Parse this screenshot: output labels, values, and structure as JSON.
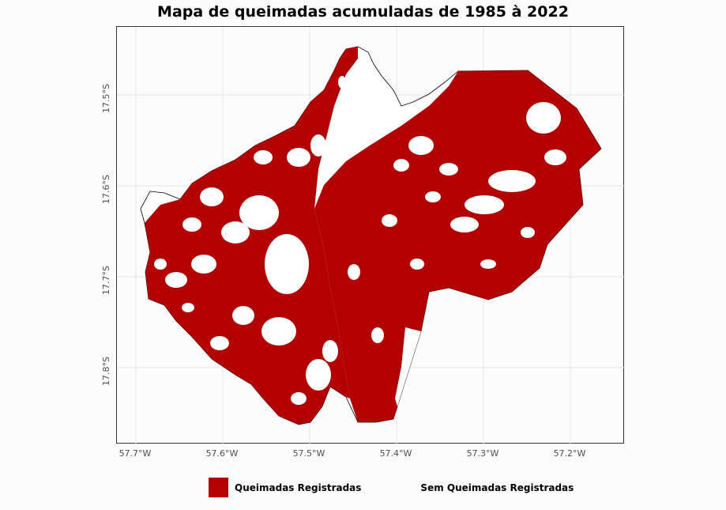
{
  "title": "Mapa de queimadas acumuladas de 1985 à 2022",
  "axes": {
    "x_ticks": [
      "57.7°W",
      "57.6°W",
      "57.5°W",
      "57.4°W",
      "57.3°W",
      "57.2°W"
    ],
    "y_ticks": [
      "17.5°S",
      "17.6°S",
      "17.7°S",
      "17.8°S"
    ]
  },
  "legend": [
    {
      "label": "Queimadas Registradas",
      "color": "#b30000"
    },
    {
      "label": "Sem Queimadas Registradas",
      "color": "#ffffff"
    }
  ],
  "colors": {
    "burned": "#b30000",
    "unburned": "#ffffff",
    "outline": "#000000"
  }
}
